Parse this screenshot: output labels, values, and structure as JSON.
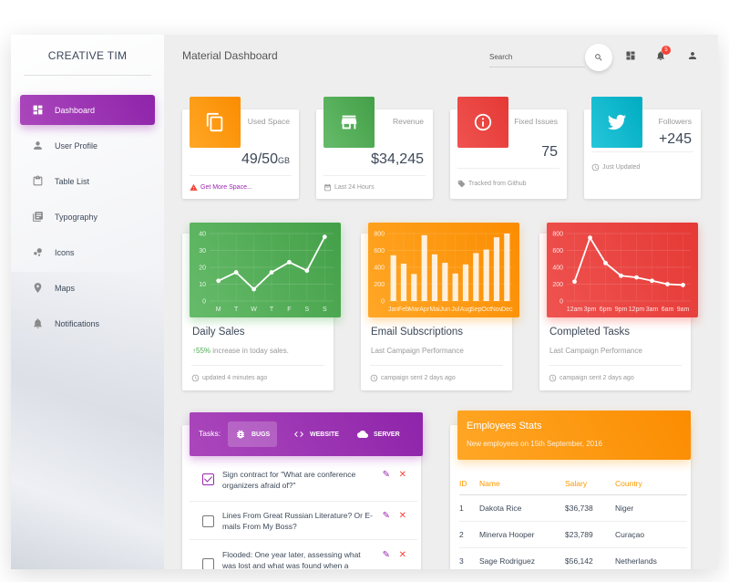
{
  "sidebar": {
    "brand": "CREATIVE TIM",
    "items": [
      {
        "label": "Dashboard",
        "icon": "dashboard-icon",
        "active": true
      },
      {
        "label": "User Profile",
        "icon": "person-icon"
      },
      {
        "label": "Table List",
        "icon": "clipboard-icon"
      },
      {
        "label": "Typography",
        "icon": "library-books-icon"
      },
      {
        "label": "Icons",
        "icon": "bubble-chart-icon"
      },
      {
        "label": "Maps",
        "icon": "location-pin-icon"
      },
      {
        "label": "Notifications",
        "icon": "bell-icon"
      }
    ]
  },
  "topbar": {
    "title": "Material Dashboard",
    "search_placeholder": "Search",
    "notification_count": "5"
  },
  "stats": [
    {
      "label": "Used Space",
      "value": "49/50",
      "unit": "GB",
      "footer": "Get More Space...",
      "color": "#ff9800"
    },
    {
      "label": "Revenue",
      "value": "$34,245",
      "footer": "Last 24 Hours",
      "color": "#4caf50"
    },
    {
      "label": "Fixed Issues",
      "value": "75",
      "footer": "Tracked from Github",
      "color": "#f44336"
    },
    {
      "label": "Followers",
      "value": "+245",
      "footer": "Just Updated",
      "color": "#00bcd4"
    }
  ],
  "charts": {
    "daily": {
      "title": "Daily Sales",
      "highlight": "55%",
      "subtitle": " increase in today sales.",
      "footer": "updated 4 minutes ago"
    },
    "email": {
      "title": "Email Subscriptions",
      "subtitle": "Last Campaign Performance",
      "footer": "campaign sent 2 days ago"
    },
    "tasks": {
      "title": "Completed Tasks",
      "subtitle": "Last Campaign Performance",
      "footer": "campaign sent 2 days ago"
    }
  },
  "chart_data": [
    {
      "type": "line",
      "title": "",
      "categories": [
        "M",
        "T",
        "W",
        "T",
        "F",
        "S",
        "S"
      ],
      "values": [
        12,
        17,
        7,
        17,
        23,
        18,
        38
      ],
      "ylim": [
        0,
        40
      ],
      "yticks": [
        "0",
        "10",
        "20",
        "30",
        "40"
      ],
      "color": "#4caf50"
    },
    {
      "type": "bar",
      "title": "",
      "categories": [
        "Jan",
        "Feb",
        "Mar",
        "Apr",
        "Mai",
        "Jun",
        "Jul",
        "Aug",
        "Sep",
        "Oct",
        "Nov",
        "Dec"
      ],
      "values": [
        542,
        443,
        320,
        780,
        553,
        453,
        326,
        434,
        568,
        610,
        756,
        895
      ],
      "ylim": [
        0,
        800
      ],
      "yticks": [
        "0",
        "200",
        "400",
        "600",
        "800"
      ],
      "color": "#ff9800"
    },
    {
      "type": "line",
      "title": "",
      "categories": [
        "12am",
        "3pm",
        "6pm",
        "9pm",
        "12pm",
        "3am",
        "6am",
        "9am"
      ],
      "values": [
        230,
        750,
        450,
        300,
        280,
        240,
        200,
        190
      ],
      "ylim": [
        0,
        800
      ],
      "yticks": [
        "0",
        "200",
        "400",
        "600",
        "800"
      ],
      "color": "#f44336"
    }
  ],
  "tasks": {
    "label": "Tasks:",
    "tabs": [
      {
        "label": "BUGS",
        "icon": "bug-icon",
        "selected": true
      },
      {
        "label": "WEBSITE",
        "icon": "code-icon"
      },
      {
        "label": "SERVER",
        "icon": "cloud-icon"
      }
    ],
    "items": [
      {
        "text": "Sign contract for \"What are conference organizers afraid of?\"",
        "checked": true
      },
      {
        "text": "Lines From Great Russian Literature? Or E-mails From My Boss?",
        "checked": false
      },
      {
        "text": "Flooded: One year later, assessing what was lost and what was found when a",
        "checked": false
      }
    ]
  },
  "employees": {
    "title": "Employees Stats",
    "subtitle": "New employees on 15th September, 2016",
    "columns": [
      "ID",
      "Name",
      "Salary",
      "Country"
    ],
    "rows": [
      [
        "1",
        "Dakota Rice",
        "$36,738",
        "Niger"
      ],
      [
        "2",
        "Minerva Hooper",
        "$23,789",
        "Curaçao"
      ],
      [
        "3",
        "Sage Rodriguez",
        "$56,142",
        "Netherlands"
      ]
    ]
  }
}
